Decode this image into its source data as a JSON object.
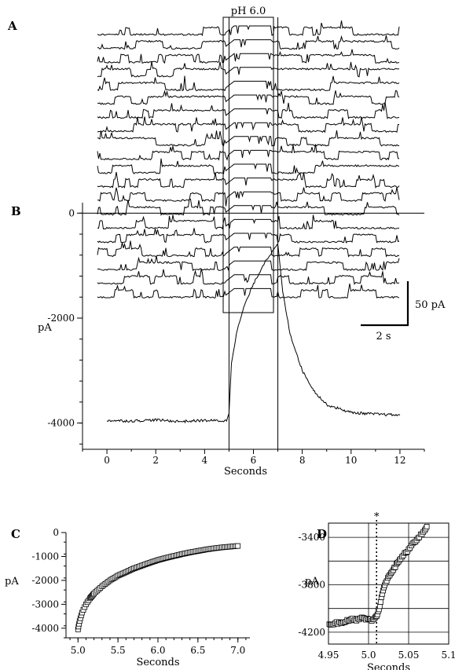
{
  "figure": {
    "panel_labels": [
      "A",
      "B",
      "C",
      "D"
    ],
    "stimulus_label": "pH 6.0",
    "scale_bar": {
      "y_label": "50 pA",
      "x_label": "2 s"
    }
  },
  "chart_data": [
    {
      "panel": "A",
      "type": "line",
      "title": "",
      "description_values": {
        "sweeps": 20,
        "duration_s": 12,
        "stimulus_window_s": [
          5,
          7
        ]
      }
    },
    {
      "panel": "B",
      "type": "line",
      "xlabel": "Seconds",
      "ylabel": "pA",
      "xlim": [
        -1,
        13
      ],
      "ylim": [
        -4500,
        200
      ],
      "xticks": [
        0,
        2,
        4,
        6,
        8,
        10,
        12
      ],
      "yticks": [
        0,
        -2000,
        -4000
      ],
      "series": [
        {
          "x": [
            0,
            1,
            2,
            3,
            4,
            4.9,
            5.0,
            5.1,
            5.3,
            5.6,
            6.0,
            6.5,
            7.0,
            7.2,
            7.5,
            8.0,
            8.5,
            9,
            10,
            11,
            12
          ],
          "values": [
            -3950,
            -3960,
            -3940,
            -3970,
            -3950,
            -3960,
            -3800,
            -2850,
            -2300,
            -1800,
            -1350,
            -900,
            -600,
            -1500,
            -2300,
            -3000,
            -3400,
            -3650,
            -3800,
            -3830,
            -3850
          ]
        }
      ]
    },
    {
      "panel": "C",
      "type": "scatter",
      "xlabel": "Seconds",
      "ylabel": "pA",
      "xlim": [
        4.85,
        7.15
      ],
      "ylim": [
        -4400,
        0
      ],
      "xticks": [
        5.0,
        5.5,
        6.0,
        6.5,
        7.0
      ],
      "yticks": [
        0,
        -1000,
        -2000,
        -3000,
        -4000
      ],
      "series": [
        {
          "x": [
            5.0,
            5.02,
            5.05,
            5.1,
            5.15,
            5.2,
            5.3,
            5.4,
            5.5,
            5.6,
            5.7,
            5.8,
            5.9,
            6.0,
            6.1,
            6.2,
            6.3,
            6.4,
            6.5,
            6.6,
            6.7,
            6.8,
            6.9,
            7.0
          ],
          "values": [
            -4050,
            -3700,
            -3350,
            -3000,
            -2750,
            -2550,
            -2250,
            -2000,
            -1800,
            -1650,
            -1500,
            -1380,
            -1260,
            -1150,
            -1060,
            -980,
            -900,
            -830,
            -770,
            -710,
            -660,
            -620,
            -590,
            -560
          ]
        }
      ]
    },
    {
      "panel": "D",
      "type": "scatter",
      "xlabel": "Seconds",
      "ylabel": "pA",
      "xlim": [
        4.95,
        5.1
      ],
      "ylim": [
        -4300,
        -3280
      ],
      "xticks": [
        "4.95",
        "5.0",
        "5.05",
        "5.1"
      ],
      "yticks": [
        -3400,
        -3800,
        -4200
      ],
      "marker_x": 5.01,
      "marker_label": "*",
      "series": [
        {
          "x": [
            4.951,
            4.955,
            4.96,
            4.965,
            4.97,
            4.975,
            4.98,
            4.985,
            4.99,
            4.995,
            5.0,
            5.004,
            5.008,
            5.011,
            5.014,
            5.017,
            5.02,
            5.024,
            5.028,
            5.032,
            5.036,
            5.04,
            5.045,
            5.05,
            5.055,
            5.06,
            5.065,
            5.07,
            5.074
          ],
          "values": [
            -4140,
            -4130,
            -4120,
            -4125,
            -4110,
            -4100,
            -4090,
            -4095,
            -4080,
            -4085,
            -4090,
            -4100,
            -4080,
            -4050,
            -3980,
            -3880,
            -3800,
            -3740,
            -3700,
            -3660,
            -3620,
            -3580,
            -3540,
            -3500,
            -3460,
            -3420,
            -3380,
            -3340,
            -3300
          ]
        }
      ]
    }
  ]
}
